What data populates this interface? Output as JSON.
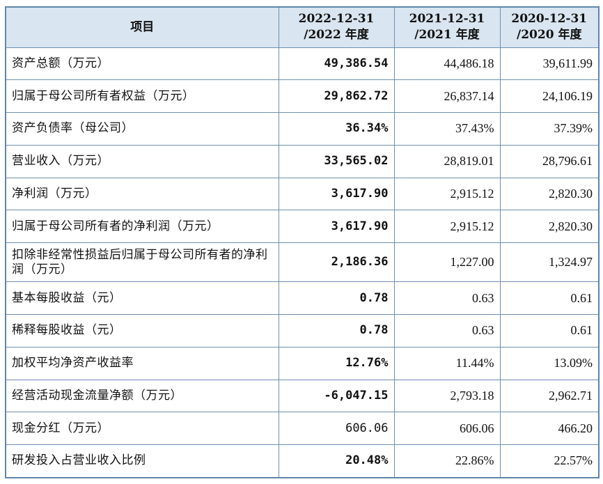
{
  "headers": {
    "item": "项目",
    "col1": {
      "line1": "2022-12-31",
      "line2": "/2022 年度"
    },
    "col2": {
      "line1": "2021-12-31",
      "line2": "/2021 年度"
    },
    "col3": {
      "line1": "2020-12-31",
      "line2": "/2020 年度"
    }
  },
  "rows": [
    {
      "label": "资产总额（万元）",
      "v2022": "49,386.54",
      "v2021": "44,486.18",
      "v2020": "39,611.99"
    },
    {
      "label": "归属于母公司所有者权益（万元）",
      "v2022": "29,862.72",
      "v2021": "26,837.14",
      "v2020": "24,106.19"
    },
    {
      "label": "资产负债率（母公司）",
      "v2022": "36.34%",
      "v2021": "37.43%",
      "v2020": "37.39%"
    },
    {
      "label": "营业收入（万元）",
      "v2022": "33,565.02",
      "v2021": "28,819.01",
      "v2020": "28,796.61"
    },
    {
      "label": "净利润（万元）",
      "v2022": "3,617.90",
      "v2021": "2,915.12",
      "v2020": "2,820.30"
    },
    {
      "label": "归属于母公司所有者的净利润（万元）",
      "v2022": "3,617.90",
      "v2021": "2,915.12",
      "v2020": "2,820.30"
    },
    {
      "label": "扣除非经常性损益后归属于母公司所有者的净利润（万元）",
      "v2022": "2,186.36",
      "v2021": "1,227.00",
      "v2020": "1,324.97"
    },
    {
      "label": "基本每股收益（元）",
      "v2022": "0.78",
      "v2021": "0.63",
      "v2020": "0.61"
    },
    {
      "label": "稀释每股收益（元）",
      "v2022": "0.78",
      "v2021": "0.63",
      "v2020": "0.61"
    },
    {
      "label": "加权平均净资产收益率",
      "v2022": "12.76%",
      "v2021": "11.44%",
      "v2020": "13.09%"
    },
    {
      "label": "经营活动现金流量净额（万元）",
      "v2022": "-6,047.15",
      "v2021": "2,793.18",
      "v2020": "2,962.71"
    },
    {
      "label": "现金分红（万元）",
      "v2022": "606.06",
      "v2021": "606.06",
      "v2020": "466.20"
    },
    {
      "label": "研发投入占营业收入比例",
      "v2022": "20.48%",
      "v2021": "22.86%",
      "v2020": "22.57%"
    }
  ]
}
